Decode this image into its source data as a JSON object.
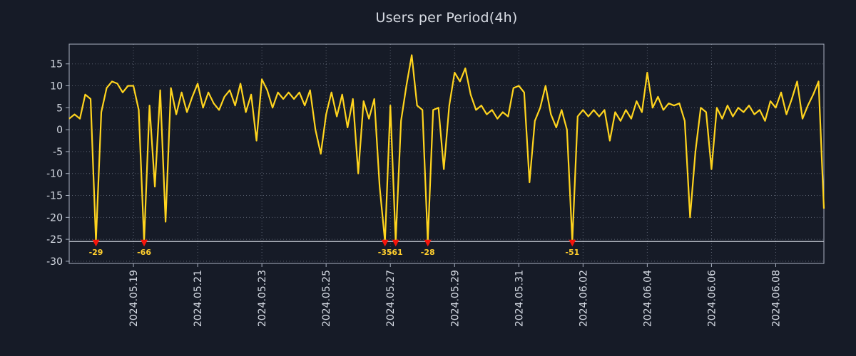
{
  "title": "Users per Period(4h)",
  "style": {
    "background": "#161b27",
    "text_color": "#d5dae3",
    "grid_color": "#9aa3b5",
    "spine_color": "#a9b1c1",
    "clip_line_color": "#e9eef7",
    "line_color": "#ffd41e",
    "marker_color": "#f5140a",
    "annotation_color": "#ffce2e"
  },
  "chart_data": {
    "type": "line",
    "title": "Users per Period(4h)",
    "xlabel": "",
    "ylabel": "",
    "x_step_hours": 4,
    "x_tick_labels": [
      "2024.05.19",
      "2024.05.21",
      "2024.05.23",
      "2024.05.25",
      "2024.05.27",
      "2024.05.29",
      "2024.05.31",
      "2024.06.02",
      "2024.06.04",
      "2024.06.06",
      "2024.06.08"
    ],
    "x_tick_indices": [
      12,
      24,
      36,
      48,
      60,
      72,
      84,
      96,
      108,
      120,
      132
    ],
    "y_ticks": [
      15,
      10,
      5,
      0,
      -5,
      -10,
      -15,
      -20,
      -25,
      -30
    ],
    "ylim": [
      -30.5,
      19.5
    ],
    "grid": "dotted",
    "legend": "none",
    "clip_threshold": -25.5,
    "series": [
      {
        "name": "Users",
        "values": [
          2.5,
          3.5,
          2.5,
          8,
          7,
          -29,
          4,
          9.5,
          11,
          10.5,
          8.5,
          10,
          10,
          4.5,
          -66,
          5.5,
          -13,
          9,
          -21,
          9.5,
          3.5,
          8.5,
          4,
          7.5,
          10.5,
          5,
          8.5,
          6,
          4.5,
          7.5,
          9,
          5.5,
          10.5,
          4,
          8,
          -2.5,
          11.5,
          9,
          5,
          8.5,
          7,
          8.5,
          7,
          8.5,
          5.5,
          9,
          0,
          -5.5,
          3.5,
          8.5,
          3,
          8,
          0.5,
          7,
          -10,
          6.5,
          2.5,
          7,
          -13,
          -35,
          5.5,
          -61,
          2,
          10,
          17,
          5.5,
          4.5,
          -28,
          4.5,
          5,
          -9,
          5.5,
          13,
          11,
          14,
          8,
          4.5,
          5.5,
          3.5,
          4.5,
          2.5,
          4,
          3,
          9.5,
          10,
          8.5,
          -12,
          2,
          5,
          10,
          3.5,
          0.5,
          4.5,
          0,
          -51,
          3,
          4.5,
          3,
          4.5,
          3,
          4.5,
          -2.5,
          4,
          2,
          4.5,
          2.5,
          6.5,
          4,
          13,
          5,
          7.5,
          4.5,
          6,
          5.5,
          6,
          2,
          -20,
          -5,
          5,
          4,
          -9,
          5,
          2.5,
          5.5,
          3,
          5,
          4,
          5.5,
          3.5,
          4.5,
          2,
          6.5,
          5,
          8.5,
          3.5,
          7,
          11,
          2.5,
          5.5,
          8,
          11,
          -18
        ]
      }
    ],
    "clipped_annotations": [
      {
        "index": 5,
        "label": "-29"
      },
      {
        "index": 14,
        "label": "-66"
      },
      {
        "index": 59,
        "label": "-35"
      },
      {
        "index": 61,
        "label": "-61"
      },
      {
        "index": 67,
        "label": "-28"
      },
      {
        "index": 94,
        "label": "-51"
      }
    ]
  }
}
